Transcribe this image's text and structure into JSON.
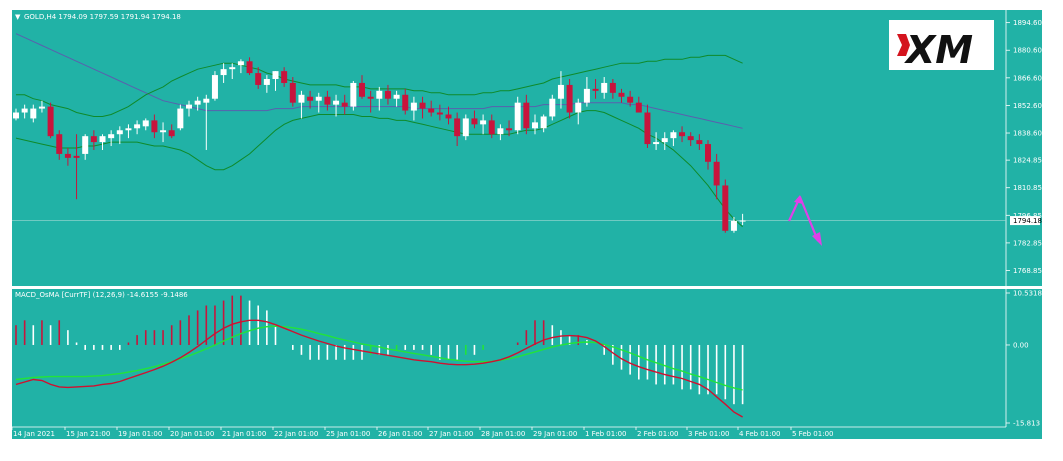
{
  "main_panel": {
    "title": "GOLD,H4  1794.09 1797.59 1791.94 1794.18",
    "price_ticks": [
      "1894.60",
      "1880.60",
      "1866.60",
      "1852.60",
      "1838.60",
      "1824.85",
      "1810.85",
      "1796.85",
      "1782.85",
      "1768.85"
    ],
    "price_range": [
      1762.0,
      1900.0
    ],
    "current_price": "1794.18",
    "logo_text": "XM"
  },
  "macd_panel": {
    "title": "MACD_OsMA [CurrTF] (12,26,9) -14.6155 -9.1486",
    "ticks": [
      "10.5318",
      "0.00",
      "-15.813"
    ],
    "range": [
      -15.813,
      10.5318
    ]
  },
  "time_axis": [
    "14 Jan 2021",
    "15 Jan 21:00",
    "19 Jan 01:00",
    "20 Jan 01:00",
    "21 Jan 01:00",
    "22 Jan 01:00",
    "25 Jan 01:00",
    "26 Jan 01:00",
    "27 Jan 01:00",
    "28 Jan 01:00",
    "29 Jan 01:00",
    "1 Feb 01:00",
    "2 Feb 01:00",
    "3 Feb 01:00",
    "4 Feb 01:00",
    "5 Feb 01:00"
  ],
  "colors": {
    "background": "#21b2a6",
    "bull": "#ffffff",
    "bear": "#c8143c",
    "bands": "#0f8a2a",
    "ma": "#5a5fae",
    "macd_line": "#d01030",
    "signal_line": "#22e33a",
    "arrow": "#e040e8"
  },
  "chart_data": [
    {
      "type": "candlestick",
      "title": "GOLD,H4  1794.09 1797.59 1791.94 1794.18",
      "y_ticks": [
        1894.6,
        1880.6,
        1866.6,
        1852.6,
        1838.6,
        1824.85,
        1810.85,
        1796.85,
        1782.85,
        1768.85
      ],
      "ylim": [
        1762.0,
        1900.0
      ],
      "candles": [
        {
          "o": 1846,
          "h": 1851,
          "l": 1845,
          "c": 1849
        },
        {
          "o": 1849,
          "h": 1853,
          "l": 1846,
          "c": 1851
        },
        {
          "o": 1846,
          "h": 1853,
          "l": 1844,
          "c": 1851
        },
        {
          "o": 1851,
          "h": 1855,
          "l": 1849,
          "c": 1852
        },
        {
          "o": 1852,
          "h": 1854,
          "l": 1836,
          "c": 1837
        },
        {
          "o": 1838,
          "h": 1840,
          "l": 1825,
          "c": 1828
        },
        {
          "o": 1828,
          "h": 1831,
          "l": 1822,
          "c": 1826
        },
        {
          "o": 1827,
          "h": 1838,
          "l": 1805,
          "c": 1826
        },
        {
          "o": 1828,
          "h": 1838,
          "l": 1825,
          "c": 1837
        },
        {
          "o": 1837,
          "h": 1840,
          "l": 1830,
          "c": 1834
        },
        {
          "o": 1834,
          "h": 1838,
          "l": 1830,
          "c": 1837
        },
        {
          "o": 1836,
          "h": 1840,
          "l": 1832,
          "c": 1838
        },
        {
          "o": 1838,
          "h": 1842,
          "l": 1833,
          "c": 1840
        },
        {
          "o": 1840,
          "h": 1843,
          "l": 1836,
          "c": 1841
        },
        {
          "o": 1841,
          "h": 1845,
          "l": 1838,
          "c": 1843
        },
        {
          "o": 1842,
          "h": 1846,
          "l": 1840,
          "c": 1845
        },
        {
          "o": 1845,
          "h": 1848,
          "l": 1836,
          "c": 1839
        },
        {
          "o": 1839,
          "h": 1844,
          "l": 1834,
          "c": 1840
        },
        {
          "o": 1840,
          "h": 1843,
          "l": 1836,
          "c": 1837
        },
        {
          "o": 1841,
          "h": 1853,
          "l": 1840,
          "c": 1851
        },
        {
          "o": 1851,
          "h": 1855,
          "l": 1847,
          "c": 1853
        },
        {
          "o": 1853,
          "h": 1857,
          "l": 1850,
          "c": 1855
        },
        {
          "o": 1854,
          "h": 1858,
          "l": 1830,
          "c": 1856
        },
        {
          "o": 1856,
          "h": 1870,
          "l": 1855,
          "c": 1868
        },
        {
          "o": 1868,
          "h": 1874,
          "l": 1864,
          "c": 1871
        },
        {
          "o": 1871,
          "h": 1874,
          "l": 1866,
          "c": 1872
        },
        {
          "o": 1873,
          "h": 1876,
          "l": 1869,
          "c": 1875
        },
        {
          "o": 1875,
          "h": 1877,
          "l": 1868,
          "c": 1869
        },
        {
          "o": 1869,
          "h": 1872,
          "l": 1861,
          "c": 1863
        },
        {
          "o": 1863,
          "h": 1868,
          "l": 1859,
          "c": 1866
        },
        {
          "o": 1866,
          "h": 1870,
          "l": 1860,
          "c": 1870
        },
        {
          "o": 1870,
          "h": 1872,
          "l": 1862,
          "c": 1864
        },
        {
          "o": 1864,
          "h": 1867,
          "l": 1852,
          "c": 1854
        },
        {
          "o": 1854,
          "h": 1860,
          "l": 1846,
          "c": 1858
        },
        {
          "o": 1857,
          "h": 1860,
          "l": 1851,
          "c": 1855
        },
        {
          "o": 1855,
          "h": 1859,
          "l": 1849,
          "c": 1857
        },
        {
          "o": 1857,
          "h": 1860,
          "l": 1850,
          "c": 1853
        },
        {
          "o": 1853,
          "h": 1858,
          "l": 1847,
          "c": 1855
        },
        {
          "o": 1854,
          "h": 1858,
          "l": 1848,
          "c": 1852
        },
        {
          "o": 1852,
          "h": 1865,
          "l": 1850,
          "c": 1864
        },
        {
          "o": 1864,
          "h": 1868,
          "l": 1856,
          "c": 1857
        },
        {
          "o": 1857,
          "h": 1860,
          "l": 1849,
          "c": 1856
        },
        {
          "o": 1856,
          "h": 1862,
          "l": 1850,
          "c": 1860
        },
        {
          "o": 1860,
          "h": 1863,
          "l": 1853,
          "c": 1856
        },
        {
          "o": 1856,
          "h": 1860,
          "l": 1852,
          "c": 1858
        },
        {
          "o": 1858,
          "h": 1861,
          "l": 1848,
          "c": 1850
        },
        {
          "o": 1850,
          "h": 1857,
          "l": 1845,
          "c": 1854
        },
        {
          "o": 1854,
          "h": 1857,
          "l": 1846,
          "c": 1851
        },
        {
          "o": 1851,
          "h": 1855,
          "l": 1847,
          "c": 1849
        },
        {
          "o": 1849,
          "h": 1853,
          "l": 1845,
          "c": 1848
        },
        {
          "o": 1848,
          "h": 1852,
          "l": 1843,
          "c": 1846
        },
        {
          "o": 1846,
          "h": 1849,
          "l": 1832,
          "c": 1837
        },
        {
          "o": 1837,
          "h": 1848,
          "l": 1835,
          "c": 1846
        },
        {
          "o": 1846,
          "h": 1850,
          "l": 1841,
          "c": 1843
        },
        {
          "o": 1843,
          "h": 1848,
          "l": 1838,
          "c": 1845
        },
        {
          "o": 1845,
          "h": 1848,
          "l": 1836,
          "c": 1838
        },
        {
          "o": 1838,
          "h": 1843,
          "l": 1835,
          "c": 1841
        },
        {
          "o": 1841,
          "h": 1845,
          "l": 1837,
          "c": 1840
        },
        {
          "o": 1840,
          "h": 1857,
          "l": 1838,
          "c": 1854
        },
        {
          "o": 1854,
          "h": 1858,
          "l": 1838,
          "c": 1841
        },
        {
          "o": 1841,
          "h": 1848,
          "l": 1838,
          "c": 1844
        },
        {
          "o": 1841,
          "h": 1848,
          "l": 1839,
          "c": 1847
        },
        {
          "o": 1847,
          "h": 1858,
          "l": 1845,
          "c": 1856
        },
        {
          "o": 1856,
          "h": 1870,
          "l": 1851,
          "c": 1863
        },
        {
          "o": 1863,
          "h": 1866,
          "l": 1846,
          "c": 1849
        },
        {
          "o": 1849,
          "h": 1856,
          "l": 1843,
          "c": 1854
        },
        {
          "o": 1854,
          "h": 1867,
          "l": 1852,
          "c": 1861
        },
        {
          "o": 1861,
          "h": 1866,
          "l": 1856,
          "c": 1860
        },
        {
          "o": 1859,
          "h": 1867,
          "l": 1856,
          "c": 1864
        },
        {
          "o": 1864,
          "h": 1866,
          "l": 1856,
          "c": 1859
        },
        {
          "o": 1859,
          "h": 1861,
          "l": 1854,
          "c": 1857
        },
        {
          "o": 1857,
          "h": 1860,
          "l": 1852,
          "c": 1854
        },
        {
          "o": 1854,
          "h": 1857,
          "l": 1850,
          "c": 1849
        },
        {
          "o": 1849,
          "h": 1853,
          "l": 1831,
          "c": 1833
        },
        {
          "o": 1833,
          "h": 1839,
          "l": 1830,
          "c": 1834
        },
        {
          "o": 1834,
          "h": 1839,
          "l": 1830,
          "c": 1836
        },
        {
          "o": 1836,
          "h": 1840,
          "l": 1832,
          "c": 1839
        },
        {
          "o": 1839,
          "h": 1842,
          "l": 1834,
          "c": 1837
        },
        {
          "o": 1837,
          "h": 1839,
          "l": 1832,
          "c": 1835
        },
        {
          "o": 1835,
          "h": 1838,
          "l": 1830,
          "c": 1833
        },
        {
          "o": 1833,
          "h": 1835,
          "l": 1820,
          "c": 1824
        },
        {
          "o": 1824,
          "h": 1828,
          "l": 1805,
          "c": 1812
        },
        {
          "o": 1812,
          "h": 1815,
          "l": 1788,
          "c": 1789
        },
        {
          "o": 1789,
          "h": 1796,
          "l": 1788,
          "c": 1794
        },
        {
          "o": 1794.09,
          "h": 1797.59,
          "l": 1791.94,
          "c": 1794.18
        }
      ],
      "bollinger_upper": [
        1858,
        1858,
        1856,
        1855,
        1853,
        1852,
        1851,
        1849,
        1848,
        1847,
        1847,
        1848,
        1850,
        1852,
        1855,
        1858,
        1860,
        1862,
        1865,
        1867,
        1869,
        1871,
        1872,
        1873,
        1874,
        1874,
        1873,
        1872,
        1871,
        1869,
        1868,
        1866,
        1865,
        1864,
        1863,
        1863,
        1863,
        1863,
        1862,
        1862,
        1862,
        1861,
        1861,
        1861,
        1861,
        1861,
        1860,
        1860,
        1859,
        1859,
        1858,
        1858,
        1858,
        1858,
        1859,
        1859,
        1860,
        1860,
        1861,
        1862,
        1863,
        1864,
        1866,
        1867,
        1868,
        1869,
        1870,
        1871,
        1872,
        1873,
        1874,
        1874,
        1874,
        1875,
        1875,
        1876,
        1876,
        1876,
        1877,
        1877,
        1878,
        1878,
        1878,
        1876,
        1874
      ],
      "bollinger_lower": [
        1836,
        1835,
        1834,
        1833,
        1832,
        1831,
        1831,
        1831,
        1832,
        1832,
        1833,
        1834,
        1834,
        1834,
        1834,
        1833,
        1832,
        1832,
        1831,
        1830,
        1828,
        1825,
        1822,
        1820,
        1820,
        1822,
        1825,
        1828,
        1832,
        1836,
        1840,
        1843,
        1845,
        1846,
        1847,
        1848,
        1848,
        1848,
        1848,
        1848,
        1847,
        1847,
        1846,
        1846,
        1845,
        1845,
        1844,
        1843,
        1842,
        1841,
        1840,
        1839,
        1838,
        1838,
        1838,
        1838,
        1838,
        1838,
        1839,
        1840,
        1840,
        1841,
        1843,
        1845,
        1847,
        1849,
        1850,
        1850,
        1849,
        1847,
        1845,
        1843,
        1841,
        1838,
        1836,
        1833,
        1830,
        1826,
        1822,
        1817,
        1812,
        1806,
        1800,
        1795,
        1791
      ],
      "ma": [
        1889,
        1887,
        1885,
        1883,
        1881,
        1879,
        1877,
        1875,
        1873,
        1871,
        1869,
        1867,
        1865,
        1863,
        1861,
        1859,
        1857,
        1855,
        1854,
        1853,
        1852,
        1851,
        1850,
        1850,
        1850,
        1850,
        1850,
        1850,
        1850,
        1850,
        1851,
        1851,
        1851,
        1852,
        1852,
        1852,
        1852,
        1852,
        1852,
        1852,
        1852,
        1852,
        1852,
        1852,
        1852,
        1852,
        1851,
        1851,
        1851,
        1851,
        1851,
        1851,
        1851,
        1851,
        1851,
        1852,
        1852,
        1852,
        1852,
        1852,
        1852,
        1853,
        1853,
        1853,
        1853,
        1854,
        1854,
        1854,
        1854,
        1854,
        1854,
        1853,
        1853,
        1852,
        1851,
        1850,
        1849,
        1848,
        1847,
        1846,
        1845,
        1844,
        1843,
        1842,
        1841
      ]
    },
    {
      "type": "bar",
      "title": "MACD_OsMA [CurrTF] (12,26,9) -14.6155 -9.1486",
      "ylim": [
        -15.813,
        10.5318
      ],
      "y_ticks": [
        10.5318,
        0.0,
        -15.813
      ],
      "histogram": [
        4,
        5,
        4,
        5,
        4,
        5,
        3,
        0.5,
        -1,
        -1,
        -1,
        -1,
        -1,
        0.5,
        2,
        3,
        3,
        3,
        4,
        5,
        6,
        7,
        8,
        8,
        9,
        10,
        10,
        9,
        8,
        7,
        4,
        0,
        -1,
        -2,
        -3,
        -3,
        -3,
        -3,
        -3,
        -3,
        -3,
        -2,
        -2,
        -2,
        -1,
        -1,
        -1,
        -1,
        -2,
        -3,
        -3,
        -3,
        -2,
        -2,
        -1,
        0,
        0,
        0,
        0.5,
        3,
        5,
        5,
        4,
        3,
        2,
        2,
        1,
        0,
        -2,
        -4,
        -5,
        -6,
        -7,
        -7,
        -8,
        -8,
        -8,
        -9,
        -9,
        -10,
        -10,
        -10,
        -11,
        -12,
        -12
      ],
      "macd_line": [
        -8,
        -7.5,
        -7,
        -7.2,
        -8,
        -8.5,
        -8.6,
        -8.5,
        -8.4,
        -8.3,
        -8,
        -7.8,
        -7.4,
        -6.8,
        -6.2,
        -5.6,
        -5,
        -4.3,
        -3.5,
        -2.6,
        -1.5,
        -0.3,
        1,
        2.3,
        3.4,
        4.2,
        4.7,
        5,
        5,
        4.7,
        4.1,
        3.4,
        2.7,
        2,
        1.4,
        0.8,
        0.3,
        -0.2,
        -0.6,
        -0.9,
        -1.2,
        -1.5,
        -1.8,
        -2.1,
        -2.4,
        -2.7,
        -3,
        -3.2,
        -3.4,
        -3.7,
        -3.9,
        -4,
        -4,
        -3.9,
        -3.7,
        -3.4,
        -3,
        -2.4,
        -1.6,
        -0.7,
        0.2,
        1,
        1.5,
        1.8,
        1.9,
        1.8,
        1.5,
        0.8,
        -0.3,
        -1.6,
        -2.8,
        -3.7,
        -4.4,
        -5,
        -5.5,
        -6,
        -6.4,
        -6.8,
        -7.4,
        -8,
        -9,
        -10.5,
        -12,
        -13.6,
        -14.6
      ],
      "signal_line": [
        -7,
        -6.8,
        -6.6,
        -6.5,
        -6.4,
        -6.4,
        -6.4,
        -6.4,
        -6.4,
        -6.3,
        -6.2,
        -6,
        -5.8,
        -5.5,
        -5.2,
        -4.8,
        -4.4,
        -3.9,
        -3.4,
        -2.8,
        -2.2,
        -1.5,
        -0.8,
        0,
        0.8,
        1.6,
        2.3,
        2.9,
        3.4,
        3.7,
        3.8,
        3.7,
        3.5,
        3.2,
        2.8,
        2.3,
        1.9,
        1.4,
        1,
        0.6,
        0.2,
        -0.1,
        -0.4,
        -0.8,
        -1.1,
        -1.4,
        -1.7,
        -2,
        -2.3,
        -2.6,
        -2.9,
        -3.1,
        -3.3,
        -3.4,
        -3.4,
        -3.3,
        -3.1,
        -2.8,
        -2.4,
        -1.9,
        -1.4,
        -0.9,
        -0.4,
        0,
        0.3,
        0.5,
        0.6,
        0.5,
        0.1,
        -0.4,
        -1,
        -1.6,
        -2.3,
        -3,
        -3.6,
        -4.2,
        -4.8,
        -5.3,
        -5.9,
        -6.4,
        -7,
        -7.6,
        -8.2,
        -8.7,
        -9.1
      ]
    }
  ]
}
